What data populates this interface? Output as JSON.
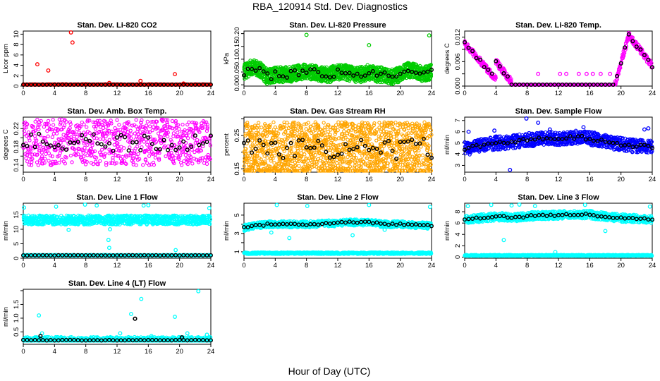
{
  "figure": {
    "title": "RBA_120914  Std. Dev. Diagnostics",
    "xlabel": "Hour of Day (UTC)"
  },
  "chart_data": [
    {
      "type": "scatter",
      "title": "Stan. Dev. Li-820 CO2",
      "ylabel": "Licor ppm",
      "xlim": [
        0,
        24
      ],
      "ylim": [
        0,
        10.6
      ],
      "xticks": [
        0,
        4,
        8,
        12,
        16,
        20,
        24
      ],
      "yticks": [
        0,
        2,
        4,
        6,
        8,
        10
      ],
      "ytick_labels": [
        "0",
        "2",
        "4",
        "6",
        "8",
        "10"
      ],
      "colors": {
        "series": "#ff0000",
        "mean": "#000000"
      },
      "base": [
        0.25
      ],
      "noise": 0.12,
      "jitter": 0.05,
      "outliers": [
        [
          1.8,
          4.2
        ],
        [
          3.2,
          3.0
        ],
        [
          6.1,
          10.4
        ],
        [
          6.3,
          8.4
        ],
        [
          15.0,
          1.0
        ],
        [
          19.4,
          2.3
        ],
        [
          11.0,
          0.6
        ],
        [
          20.5,
          0.5
        ]
      ],
      "mean_base": [
        0.25
      ],
      "mean_jitter": 0.03,
      "mean_step": 0.5,
      "density": 3
    },
    {
      "type": "scatter",
      "title": "Stan. Dev. Li-820 Pressure",
      "ylabel": "kPa",
      "xlim": [
        0,
        24
      ],
      "ylim": [
        -0.005,
        0.21
      ],
      "xticks": [
        0,
        4,
        8,
        12,
        16,
        20,
        24
      ],
      "yticks": [
        0,
        0.05,
        0.1,
        0.15,
        0.2
      ],
      "ytick_labels": [
        "0.00",
        "0.05",
        "0.10",
        "0.15",
        "0.20"
      ],
      "colors": {
        "series": "#00cc00",
        "mean": "#000000"
      },
      "base": [
        0.05,
        0.07,
        0.06,
        0.03,
        0.04,
        0.04,
        0.04,
        0.05,
        0.05,
        0.05,
        0.04,
        0.04,
        0.05,
        0.05,
        0.04,
        0.04,
        0.05,
        0.04,
        0.04,
        0.03,
        0.04,
        0.06,
        0.05,
        0.04,
        0.05
      ],
      "noise": 0.03,
      "jitter": 0.0,
      "floor": 0.0,
      "outliers": [
        [
          8.0,
          0.195
        ],
        [
          16.0,
          0.155
        ],
        [
          23.7,
          0.193
        ]
      ],
      "mean_base": [
        0.05,
        0.07,
        0.06,
        0.03,
        0.04,
        0.04,
        0.04,
        0.05,
        0.05,
        0.05,
        0.04,
        0.04,
        0.05,
        0.05,
        0.04,
        0.04,
        0.05,
        0.04,
        0.04,
        0.03,
        0.04,
        0.06,
        0.05,
        0.04,
        0.05
      ],
      "mean_jitter": 0.015,
      "mean_step": 0.5,
      "density": 6
    },
    {
      "type": "scatter",
      "title": "Stan. Dev. Li-820 Temp.",
      "ylabel": "degrees C",
      "xlim": [
        0,
        24
      ],
      "ylim": [
        0,
        0.0135
      ],
      "xticks": [
        0,
        4,
        8,
        12,
        16,
        20,
        24
      ],
      "yticks": [
        0,
        0.002,
        0.004,
        0.006,
        0.008,
        0.01,
        0.012
      ],
      "ytick_labels": [
        "0.000",
        "",
        "0.006",
        "",
        "0.012"
      ],
      "ytick_values": [
        0,
        0.003,
        0.006,
        0.009,
        0.012
      ],
      "colors": {
        "series": "#ff00ff",
        "mean": "#000000"
      },
      "curve": "temp",
      "noise": 0.0008,
      "jitter": 0.0,
      "outliers": [
        [
          9.4,
          0.003
        ],
        [
          12.2,
          0.003
        ],
        [
          13.0,
          0.003
        ],
        [
          14.6,
          0.003
        ],
        [
          15.6,
          0.003
        ],
        [
          16.4,
          0.003
        ],
        [
          17.4,
          0.003
        ],
        [
          18.6,
          0.003
        ]
      ],
      "mean_step": 0.5,
      "density": 3
    },
    {
      "type": "scatter",
      "title": "Stan. Dev. Amb. Box Temp.",
      "ylabel": "degrees C",
      "xlim": [
        0,
        24
      ],
      "ylim": [
        0.125,
        0.245
      ],
      "xticks": [
        0,
        4,
        8,
        12,
        16,
        20,
        24
      ],
      "yticks": [
        0.14,
        0.16,
        0.18,
        0.2,
        0.22
      ],
      "ytick_labels": [
        "0.14",
        "",
        "0.18",
        "",
        "0.22"
      ],
      "colors": {
        "series": "#ff00ff",
        "mean": "#000000"
      },
      "base": [
        0.19
      ],
      "noise": 0.05,
      "jitter": 0.0,
      "outliers": [],
      "mean_base": [
        0.19
      ],
      "mean_jitter": 0.02,
      "mean_step": 0.5,
      "density": 3
    },
    {
      "type": "scatter",
      "title": "Stan. Dev. Gas Stream RH",
      "ylabel": "percent",
      "xlim": [
        0,
        24
      ],
      "ylim": [
        0.14,
        0.305
      ],
      "xticks": [
        0,
        4,
        8,
        12,
        16,
        20,
        24
      ],
      "yticks": [
        0.15,
        0.2,
        0.25,
        0.3
      ],
      "ytick_labels": [
        "0.15",
        "",
        "0.25",
        ""
      ],
      "colors": {
        "series": "#ffa500",
        "mean": "#000000"
      },
      "base": [
        0.21
      ],
      "noise": 0.08,
      "jitter": 0.0,
      "outliers": [],
      "mean_base": [
        0.21
      ],
      "mean_jitter": 0.03,
      "mean_step": 0.5,
      "density": 6
    },
    {
      "type": "scatter",
      "title": "Stan. Dev. Sample Flow",
      "ylabel": "ml/min",
      "xlim": [
        0,
        24
      ],
      "ylim": [
        2.4,
        7.3
      ],
      "xticks": [
        0,
        4,
        8,
        12,
        16,
        20,
        24
      ],
      "yticks": [
        3,
        4,
        5,
        6,
        7
      ],
      "ytick_labels": [
        "3",
        "4",
        "5",
        "6",
        "7"
      ],
      "colors": {
        "series": "#0000ff",
        "mean": "#000000"
      },
      "base": [
        4.5,
        4.6,
        4.8,
        4.9,
        5.0,
        5.0,
        5.1,
        5.2,
        5.3,
        5.3,
        5.4,
        5.4,
        5.4,
        5.4,
        5.5,
        5.5,
        5.4,
        5.3,
        5.2,
        5.0,
        4.9,
        4.8,
        4.7,
        4.7,
        4.6
      ],
      "noise": 0.6,
      "jitter": 0.0,
      "outliers": [
        [
          5.8,
          2.6
        ],
        [
          7.9,
          7.2
        ],
        [
          9.4,
          6.8
        ],
        [
          15.2,
          6.4
        ],
        [
          23.5,
          6.3
        ],
        [
          3.8,
          6.1
        ],
        [
          0.5,
          6.0
        ],
        [
          10.9,
          6.2
        ],
        [
          23.0,
          6.2
        ]
      ],
      "mean_base": [
        4.5,
        4.6,
        4.8,
        4.9,
        5.0,
        5.0,
        5.1,
        5.2,
        5.3,
        5.3,
        5.4,
        5.4,
        5.4,
        5.4,
        5.5,
        5.5,
        5.4,
        5.3,
        5.2,
        5.0,
        4.9,
        4.8,
        4.7,
        4.7,
        4.6
      ],
      "mean_jitter": 0.15,
      "mean_step": 0.5,
      "density": 4
    },
    {
      "type": "scatter",
      "title": "Stan. Dev. Line 1 Flow",
      "ylabel": "ml/min",
      "xlim": [
        0,
        24
      ],
      "ylim": [
        0,
        19
      ],
      "xticks": [
        0,
        4,
        8,
        12,
        16,
        20,
        24
      ],
      "yticks": [
        0,
        5,
        10,
        15
      ],
      "ytick_labels": [
        "0",
        "5",
        "10",
        "15"
      ],
      "colors": {
        "series": "#00ffff",
        "mean": "#000000"
      },
      "base": [
        13.2
      ],
      "noise": 1.6,
      "jitter": 0.0,
      "outliers": [
        [
          0.1,
          17.5
        ],
        [
          4.2,
          17.8
        ],
        [
          7.9,
          18.6
        ],
        [
          11.0,
          3.6
        ],
        [
          10.9,
          6.3
        ],
        [
          11.1,
          10.0
        ],
        [
          15.4,
          18.2
        ],
        [
          16.0,
          18.3
        ],
        [
          19.5,
          2.8
        ],
        [
          23.8,
          17.3
        ],
        [
          5.8,
          9.8
        ],
        [
          9.4,
          18.2
        ]
      ],
      "second": {
        "values": [
          1.0
        ],
        "noise": 0.15,
        "density": 3
      },
      "mean_base": [
        1.0
      ],
      "mean_jitter": 0.05,
      "mean_step": 0.5,
      "density": 4
    },
    {
      "type": "scatter",
      "title": "Stan. Dev. Line 2 Flow",
      "ylabel": "ml/min",
      "xlim": [
        0,
        24
      ],
      "ylim": [
        0.3,
        6.3
      ],
      "xticks": [
        0,
        4,
        8,
        12,
        16,
        20,
        24
      ],
      "yticks": [
        1,
        2,
        3,
        4,
        5
      ],
      "ytick_labels": [
        "1",
        "",
        "3",
        "",
        "5"
      ],
      "colors": {
        "series": "#00ffff",
        "mean": "#000000"
      },
      "base": [
        3.6,
        3.8,
        3.9,
        4.0,
        4.0,
        4.0,
        4.0,
        4.0,
        4.0,
        4.0,
        4.1,
        4.1,
        4.1,
        4.2,
        4.2,
        4.2,
        4.2,
        4.1,
        4.0,
        4.0,
        4.0,
        4.0,
        3.9,
        3.9,
        3.8
      ],
      "noise": 0.35,
      "jitter": 0.0,
      "outliers": [
        [
          4.2,
          6.1
        ],
        [
          8.1,
          6.0
        ],
        [
          16.0,
          6.1
        ],
        [
          23.8,
          5.9
        ],
        [
          5.8,
          2.5
        ],
        [
          13.9,
          2.8
        ],
        [
          3.5,
          3.1
        ],
        [
          18.0,
          3.4
        ]
      ],
      "second": {
        "values": [
          0.85
        ],
        "noise": 0.1,
        "density": 3
      },
      "mean_base": [
        3.6,
        3.8,
        3.9,
        4.0,
        4.0,
        4.0,
        4.0,
        4.0,
        4.0,
        4.0,
        4.1,
        4.1,
        4.1,
        4.2,
        4.2,
        4.2,
        4.2,
        4.1,
        4.0,
        4.0,
        4.0,
        4.0,
        3.9,
        3.9,
        3.8
      ],
      "mean_jitter": 0.1,
      "mean_step": 0.5,
      "density": 4
    },
    {
      "type": "scatter",
      "title": "Stan. Dev. Line 3 Flow",
      "ylabel": "ml/min",
      "xlim": [
        0,
        24
      ],
      "ylim": [
        -0.2,
        9.5
      ],
      "xticks": [
        0,
        4,
        8,
        12,
        16,
        20,
        24
      ],
      "yticks": [
        0,
        2,
        4,
        6,
        8
      ],
      "ytick_labels": [
        "0",
        "2",
        "4",
        "6",
        "8"
      ],
      "colors": {
        "series": "#00ffff",
        "mean": "#000000"
      },
      "base": [
        6.6,
        6.7,
        6.9,
        7.0,
        7.1,
        7.1,
        7.0,
        7.0,
        7.2,
        7.3,
        7.3,
        7.4,
        7.4,
        7.5,
        7.5,
        7.5,
        7.5,
        7.3,
        7.2,
        7.0,
        6.9,
        6.8,
        6.8,
        6.7,
        6.6
      ],
      "noise": 0.7,
      "jitter": 0.0,
      "outliers": [
        [
          0.4,
          9.0
        ],
        [
          3.4,
          9.2
        ],
        [
          5.0,
          3.0
        ],
        [
          6.0,
          9.1
        ],
        [
          7.0,
          9.3
        ],
        [
          11.6,
          0.9
        ],
        [
          15.4,
          9.2
        ],
        [
          18.0,
          4.6
        ],
        [
          23.7,
          8.9
        ],
        [
          9.0,
          9.0
        ]
      ],
      "second": {
        "values": [
          0.3
        ],
        "noise": 0.1,
        "density": 3
      },
      "mean_base": [
        6.6,
        6.7,
        6.9,
        7.0,
        7.1,
        7.1,
        7.0,
        7.0,
        7.2,
        7.3,
        7.3,
        7.4,
        7.4,
        7.5,
        7.5,
        7.5,
        7.5,
        7.3,
        7.2,
        7.0,
        6.9,
        6.8,
        6.8,
        6.7,
        6.6
      ],
      "mean_jitter": 0.15,
      "mean_step": 0.5,
      "density": 4
    },
    {
      "type": "scatter",
      "title": "Stan. Dev. Line 4 (LT) Flow",
      "ylabel": "ml/min",
      "xlim": [
        0,
        24
      ],
      "ylim": [
        0.05,
        2.05
      ],
      "xticks": [
        0,
        4,
        8,
        12,
        16,
        20,
        24
      ],
      "yticks": [
        0.5,
        1.0,
        1.5,
        2.0
      ],
      "ytick_labels": [
        "0.5",
        "1.0",
        "1.5",
        ""
      ],
      "colors": {
        "series": "#00ffff",
        "mean": "#000000"
      },
      "base": [
        0.2
      ],
      "noise": 0.12,
      "jitter": 0.0,
      "floor": 0.18,
      "outliers": [
        [
          2.0,
          1.1
        ],
        [
          2.4,
          0.45
        ],
        [
          12.4,
          0.45
        ],
        [
          13.8,
          1.15
        ],
        [
          15.1,
          1.7
        ],
        [
          16.4,
          0.35
        ],
        [
          19.4,
          1.05
        ],
        [
          21.0,
          0.45
        ],
        [
          22.4,
          1.98
        ],
        [
          23.5,
          0.4
        ]
      ],
      "mean_base": [
        0.2
      ],
      "mean_jitter": 0.01,
      "mean_step": 0.5,
      "density": 3,
      "mean_outliers": [
        [
          2.2,
          0.35
        ],
        [
          14.3,
          0.98
        ],
        [
          20.3,
          0.3
        ]
      ]
    }
  ]
}
